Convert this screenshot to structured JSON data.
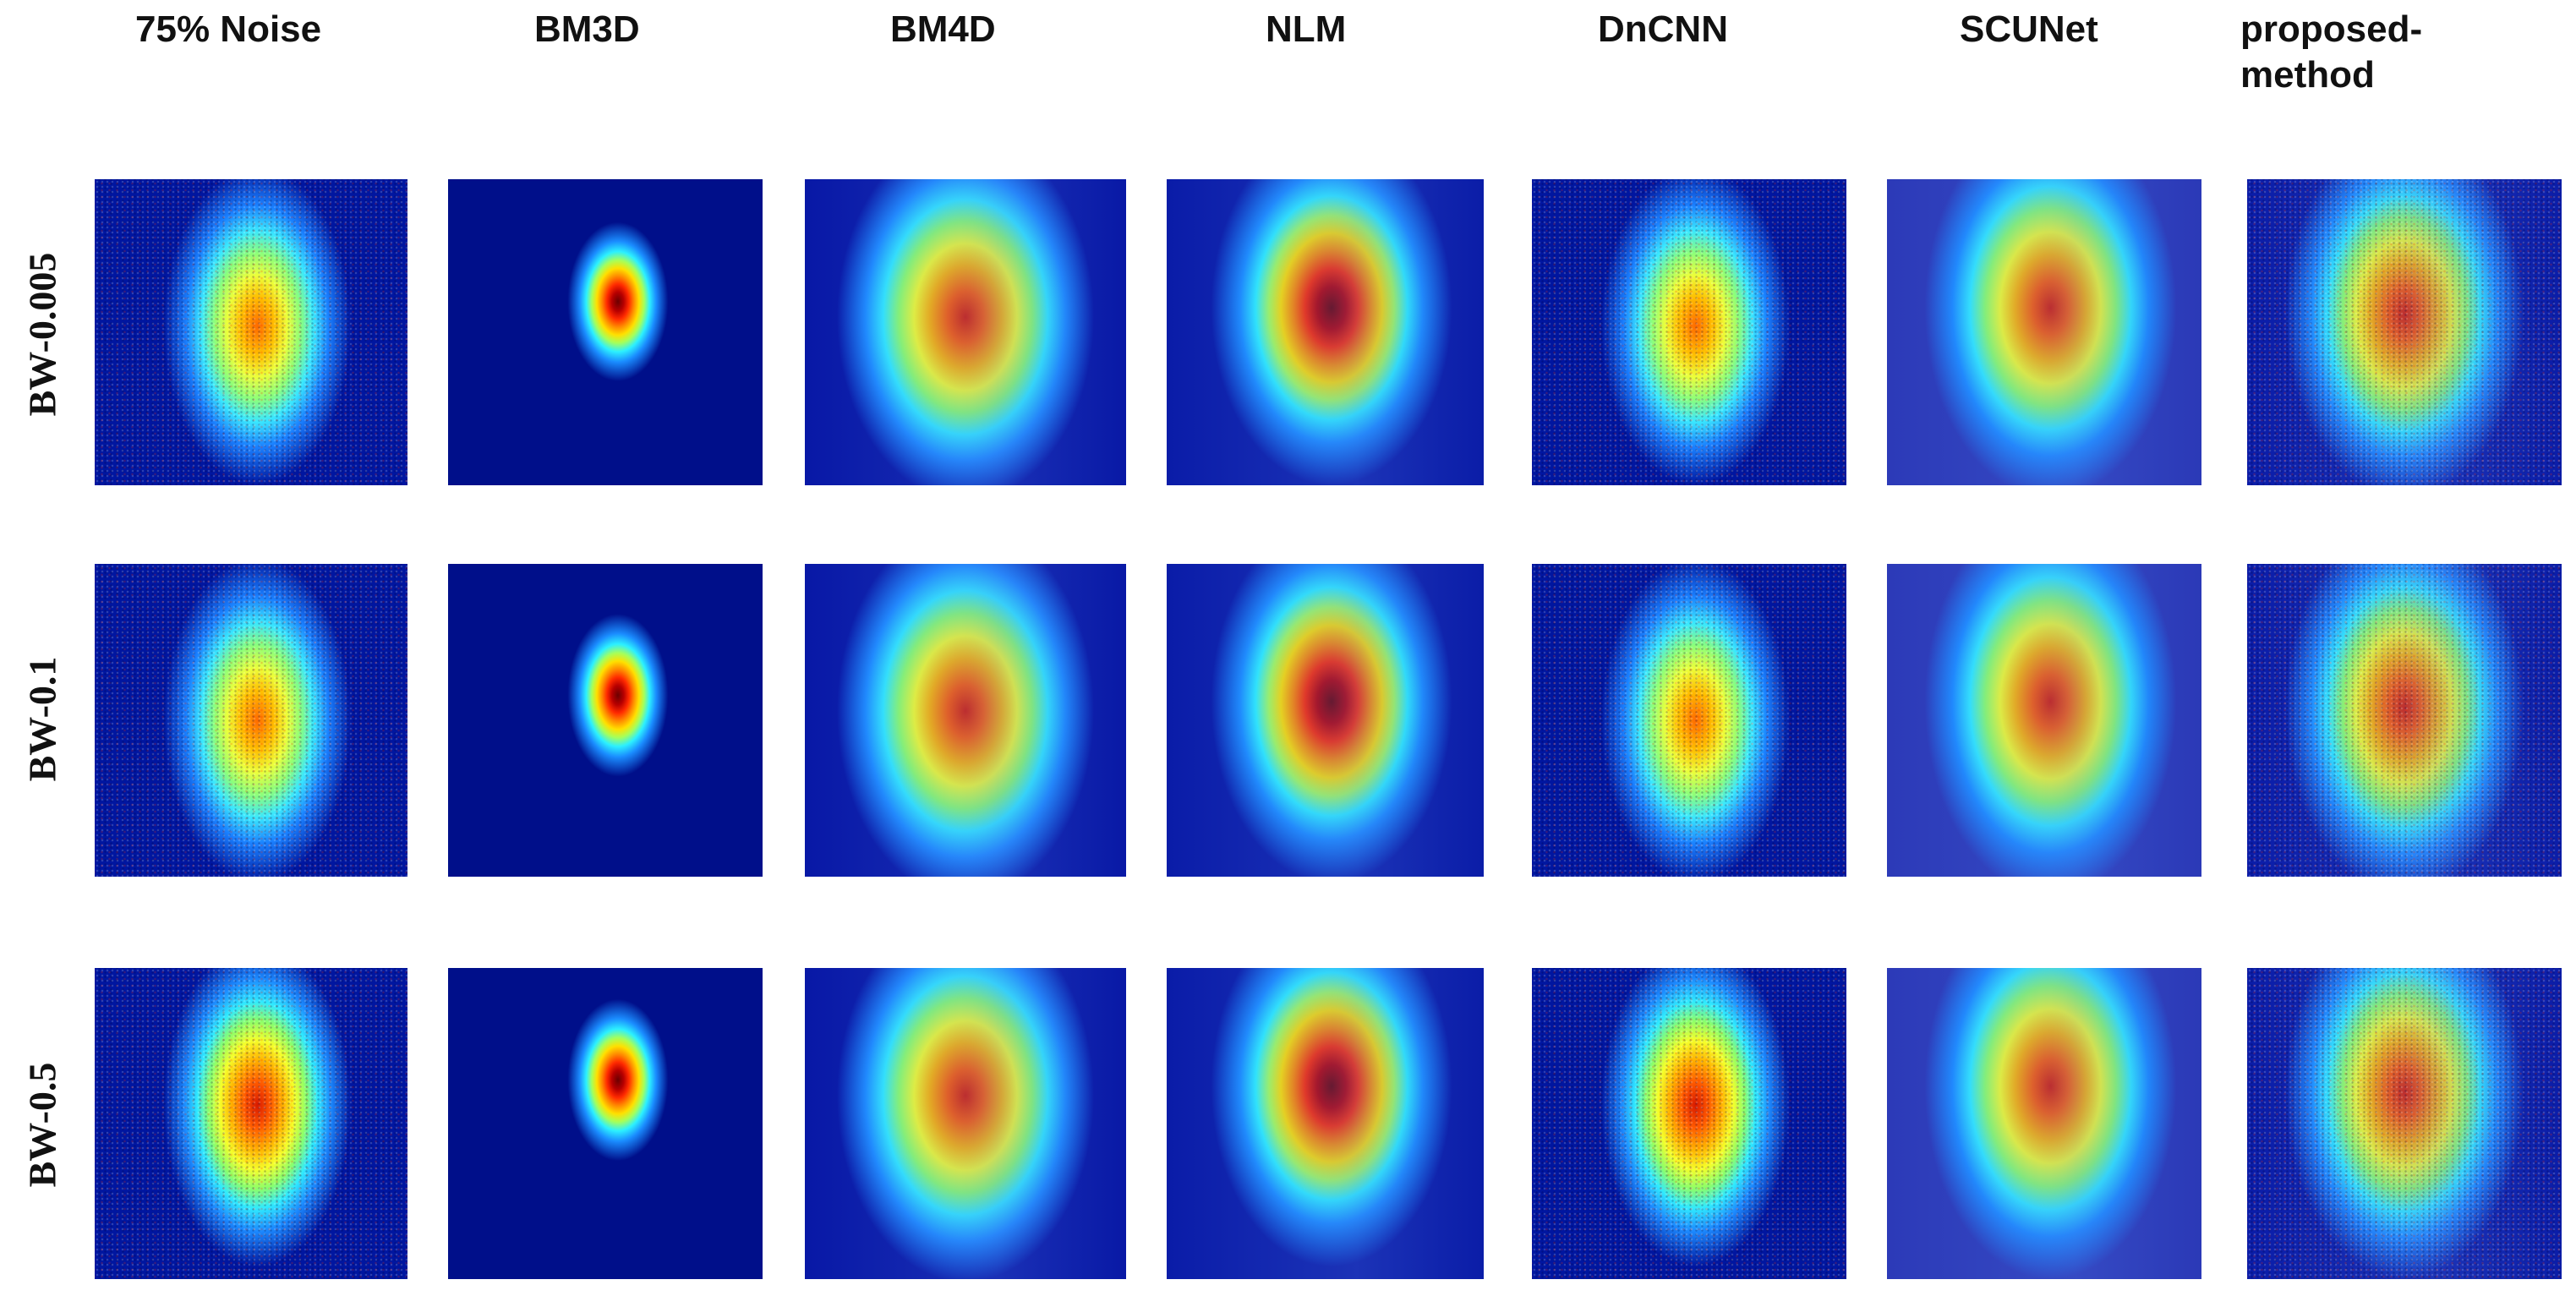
{
  "column_headers": [
    {
      "label": "75% Noise"
    },
    {
      "label": "BM3D"
    },
    {
      "label": "BM4D"
    },
    {
      "label": "NLM"
    },
    {
      "label": "DnCNN"
    },
    {
      "label": "SCUNet"
    },
    {
      "label": "proposed-method"
    }
  ],
  "row_labels": [
    {
      "label": "BW-0.005"
    },
    {
      "label": "BW-0.1"
    },
    {
      "label": "BW-0.5"
    }
  ],
  "colors": {
    "background_blue": "#00108f",
    "colormap": "jet"
  }
}
